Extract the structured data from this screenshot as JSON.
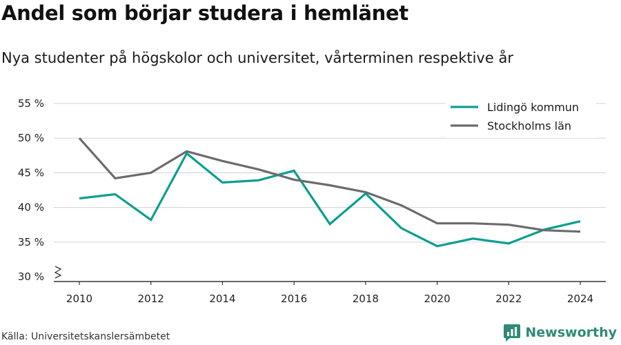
{
  "header": {
    "title": "Andel som börjar studera i hemlänet",
    "subtitle": "Nya studenter på högskolor och universitet, vårterminen respektive år"
  },
  "footer": {
    "source": "Källa: Universitetskanslersämbetet",
    "brand": "Newsworthy"
  },
  "colors": {
    "lidingo": "#0a9e8f",
    "stockholm": "#6b6b6e",
    "grid": "#d9d9d9",
    "axis": "#333333",
    "brand": "#2f8a78"
  },
  "chart_data": {
    "type": "line",
    "x": [
      2010,
      2011,
      2012,
      2013,
      2014,
      2015,
      2016,
      2017,
      2018,
      2019,
      2020,
      2021,
      2022,
      2023,
      2024
    ],
    "series": [
      {
        "name": "Lidingö kommun",
        "color": "#0a9e8f",
        "values": [
          41.3,
          41.9,
          38.2,
          47.8,
          43.6,
          43.9,
          45.3,
          37.6,
          42.0,
          37.0,
          34.4,
          35.5,
          34.8,
          36.8,
          38.0
        ]
      },
      {
        "name": "Stockholms län",
        "color": "#6b6b6e",
        "values": [
          50.0,
          44.2,
          45.0,
          48.1,
          46.7,
          45.5,
          44.0,
          43.2,
          42.2,
          40.3,
          37.7,
          37.7,
          37.5,
          36.7,
          36.5
        ]
      }
    ],
    "y_ticks": [
      "30 %",
      "35 %",
      "40 %",
      "45 %",
      "50 %",
      "55 %"
    ],
    "x_ticks": [
      "2010",
      "2012",
      "2014",
      "2016",
      "2018",
      "2020",
      "2022",
      "2024"
    ],
    "ylim": [
      30,
      55
    ],
    "xlim": [
      2010,
      2024
    ],
    "broken_y_axis": true,
    "grid": true,
    "legend_position": "top-right"
  }
}
